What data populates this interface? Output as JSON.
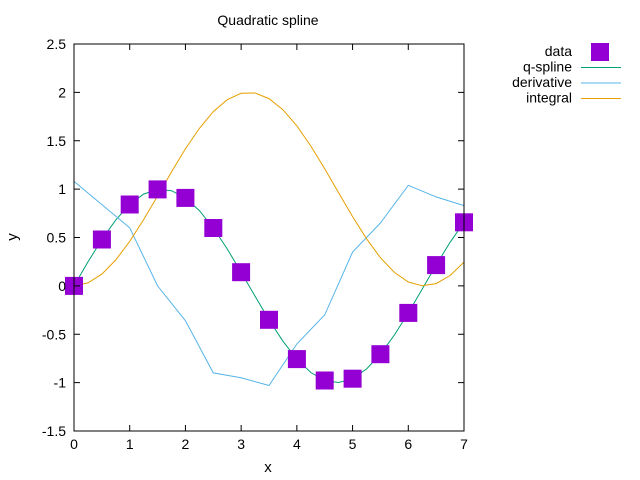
{
  "chart_data": {
    "type": "line",
    "title": "Quadratic spline",
    "xlabel": "x",
    "ylabel": "y",
    "xlim": [
      0,
      7
    ],
    "ylim": [
      -1.5,
      2.5
    ],
    "xticks": [
      0,
      1,
      2,
      3,
      4,
      5,
      6,
      7
    ],
    "yticks": [
      -1.5,
      -1,
      -0.5,
      0,
      0.5,
      1,
      1.5,
      2,
      2.5
    ],
    "grid": false,
    "legend_position": "top-right outside",
    "series": [
      {
        "name": "data",
        "kind": "scatter",
        "color": "#9400d3",
        "x": [
          0,
          0.5,
          1,
          1.5,
          2,
          2.5,
          3,
          3.5,
          4,
          4.5,
          5,
          5.5,
          6,
          6.5,
          7
        ],
        "y": [
          0,
          0.479,
          0.841,
          0.997,
          0.909,
          0.598,
          0.141,
          -0.351,
          -0.757,
          -0.978,
          -0.959,
          -0.706,
          -0.279,
          0.215,
          0.657
        ]
      },
      {
        "name": "q-spline",
        "kind": "line",
        "color": "#009e73",
        "x": [
          0,
          0.25,
          0.5,
          0.75,
          1,
          1.25,
          1.5,
          1.75,
          2,
          2.25,
          2.5,
          2.75,
          3,
          3.25,
          3.5,
          3.75,
          4,
          4.25,
          4.5,
          4.75,
          5,
          5.25,
          5.5,
          5.75,
          6,
          6.25,
          6.5,
          6.75,
          7
        ],
        "y": [
          0,
          0.247,
          0.479,
          0.682,
          0.841,
          0.949,
          0.997,
          0.984,
          0.909,
          0.778,
          0.598,
          0.382,
          0.141,
          -0.108,
          -0.351,
          -0.572,
          -0.757,
          -0.895,
          -0.978,
          -0.999,
          -0.959,
          -0.859,
          -0.706,
          -0.508,
          -0.279,
          -0.033,
          0.215,
          0.45,
          0.657
        ]
      },
      {
        "name": "derivative",
        "kind": "line",
        "color": "#56b4e9",
        "x": [
          0,
          0.5,
          1,
          1.5,
          2,
          2.5,
          3,
          3.5,
          4,
          4.5,
          5,
          5.5,
          6,
          6.5,
          7
        ],
        "y": [
          1.08,
          0.84,
          0.6,
          0.0,
          -0.36,
          -0.9,
          -0.95,
          -1.03,
          -0.6,
          -0.3,
          0.35,
          0.65,
          1.04,
          0.92,
          0.83
        ]
      },
      {
        "name": "integral",
        "kind": "line",
        "color": "#e69f00",
        "x": [
          0,
          0.25,
          0.5,
          0.75,
          1,
          1.25,
          1.5,
          1.75,
          2,
          2.25,
          2.5,
          2.75,
          3,
          3.25,
          3.5,
          3.75,
          4,
          4.25,
          4.5,
          4.75,
          5,
          5.25,
          5.5,
          5.75,
          6,
          6.25,
          6.5,
          6.75,
          7
        ],
        "y": [
          0,
          0.031,
          0.122,
          0.268,
          0.46,
          0.685,
          0.929,
          1.178,
          1.416,
          1.628,
          1.801,
          1.924,
          1.99,
          1.994,
          1.936,
          1.821,
          1.654,
          1.446,
          1.211,
          0.962,
          0.716,
          0.488,
          0.291,
          0.139,
          0.04,
          0.001,
          0.023,
          0.107,
          0.246
        ]
      }
    ]
  }
}
